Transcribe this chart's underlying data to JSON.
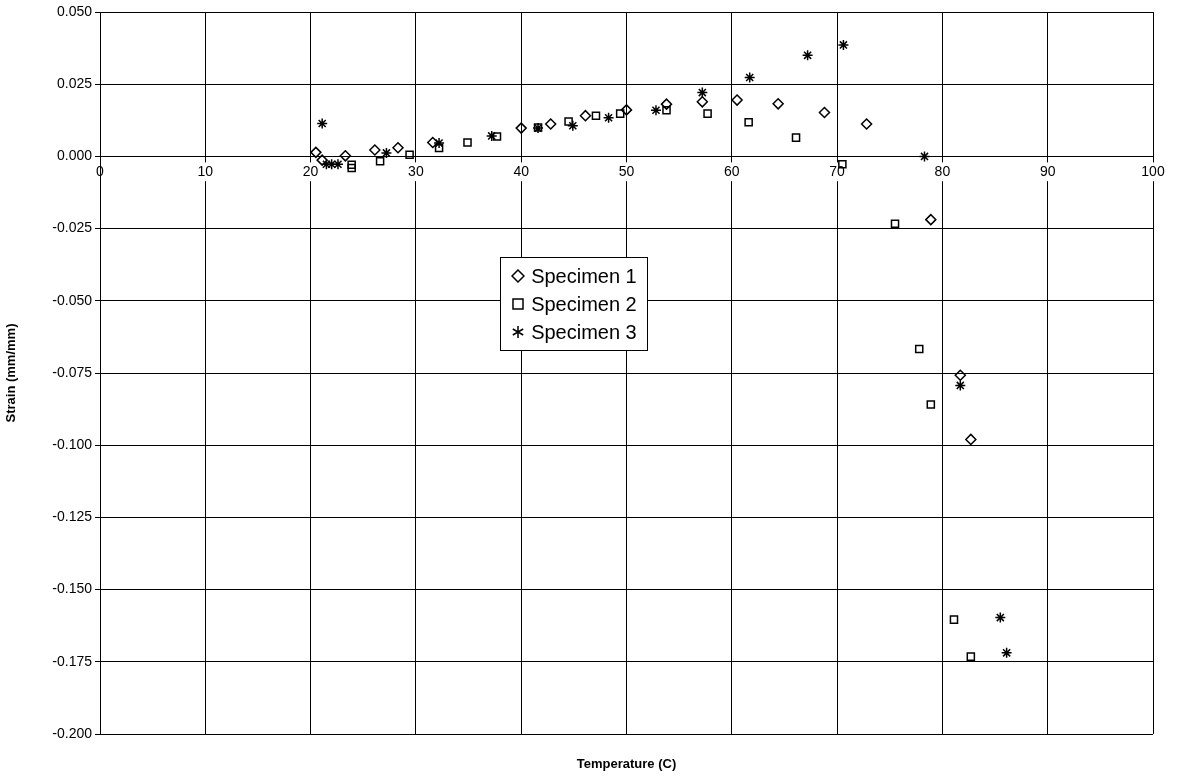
{
  "chart_data": {
    "type": "scatter",
    "xlabel": "Temperature (C)",
    "ylabel": "Strain (mm/mm)",
    "xlim": [
      0,
      100
    ],
    "xticks": [
      0,
      10,
      20,
      30,
      40,
      50,
      60,
      70,
      80,
      90,
      100
    ],
    "ylim": [
      -0.2,
      0.05
    ],
    "yticks": [
      {
        "value": 0.05,
        "label": "0.050"
      },
      {
        "value": 0.025,
        "label": "0.025"
      },
      {
        "value": 0,
        "label": "0.000"
      },
      {
        "value": -0.025,
        "label": "-0.025"
      },
      {
        "value": -0.05,
        "label": "-0.050"
      },
      {
        "value": -0.075,
        "label": "-0.075"
      },
      {
        "value": -0.1,
        "label": "-0.100"
      },
      {
        "value": -0.125,
        "label": "-0.125"
      },
      {
        "value": -0.15,
        "label": "-0.150"
      },
      {
        "value": -0.175,
        "label": "-0.175"
      },
      {
        "value": -0.2,
        "label": "-0.200"
      }
    ],
    "grid": true,
    "legend": "center",
    "series": [
      {
        "name": "Specimen 1",
        "color": "#000000",
        "marker": "diamond",
        "x": [
          20.5,
          21.1,
          23.3,
          26.1,
          28.3,
          31.6,
          40.0,
          42.8,
          46.1,
          50.0,
          53.8,
          57.2,
          60.5,
          64.4,
          68.8,
          72.8,
          78.9,
          81.7,
          82.7
        ],
        "values": [
          0.0014,
          -0.0013,
          0.0002,
          0.0022,
          0.003,
          0.0048,
          0.0098,
          0.0112,
          0.0141,
          0.0161,
          0.0181,
          0.0189,
          0.0195,
          0.0182,
          0.0152,
          0.0112,
          -0.0219,
          -0.0758,
          -0.098
        ]
      },
      {
        "name": "Specimen 2",
        "color": "#000000",
        "marker": "square",
        "x": [
          23.9,
          23.9,
          26.6,
          29.4,
          32.2,
          34.9,
          37.7,
          41.6,
          44.5,
          47.1,
          49.4,
          53.8,
          57.7,
          61.6,
          66.1,
          70.5,
          75.5,
          77.8,
          78.9,
          81.1,
          82.7
        ],
        "values": [
          -0.0029,
          -0.004,
          -0.0017,
          0.0006,
          0.0029,
          0.0048,
          0.0069,
          0.01,
          0.0121,
          0.0141,
          0.0148,
          0.016,
          0.0148,
          0.0118,
          0.0065,
          -0.0027,
          -0.0233,
          -0.0667,
          -0.0859,
          -0.1604,
          -0.1732
        ]
      },
      {
        "name": "Specimen 3",
        "color": "#000000",
        "marker": "cross",
        "x": [
          21.1,
          21.5,
          22.0,
          22.6,
          27.2,
          32.2,
          37.2,
          41.6,
          44.9,
          48.3,
          52.8,
          57.2,
          61.7,
          67.2,
          70.6,
          78.3,
          81.7,
          85.5,
          86.1
        ],
        "values": [
          0.0114,
          -0.0027,
          -0.0027,
          -0.0027,
          0.0012,
          0.0046,
          0.0071,
          0.0098,
          0.0106,
          0.0134,
          0.016,
          0.0221,
          0.0273,
          0.035,
          0.0386,
          0.0,
          -0.0793,
          -0.1597,
          -0.1719
        ]
      }
    ]
  }
}
